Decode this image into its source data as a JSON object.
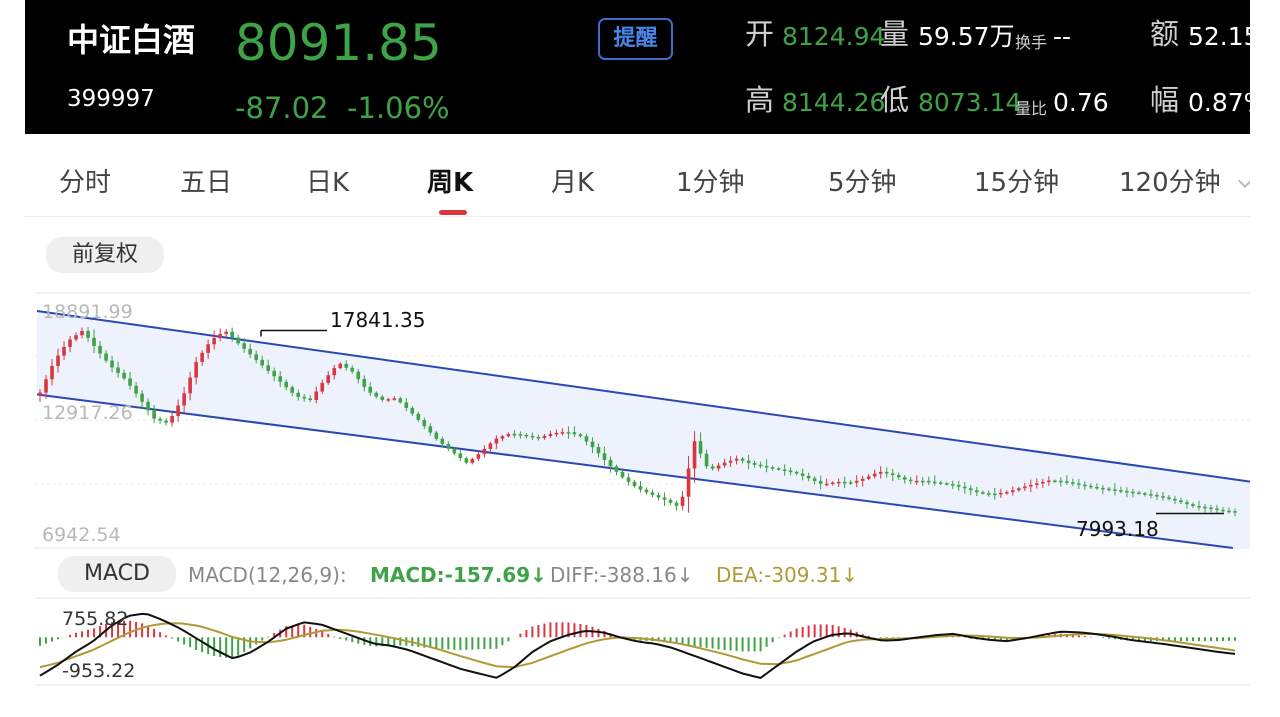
{
  "colors": {
    "up": "#d9363e",
    "down": "#3ea346",
    "dea": "#b09a35",
    "channel": "#2a48b5",
    "alert_border": "#3d6cc9"
  },
  "header": {
    "name": "中证白酒",
    "code": "399997",
    "price": "8091.85",
    "change": "-87.02",
    "change_pct": "-1.06%",
    "alert_button": "提醒",
    "open_label": "开",
    "open_value": "8124.94",
    "volume_label": "量",
    "volume_value": "59.57万",
    "turnover_label": "换手",
    "turnover_value": "--",
    "amount_label": "额",
    "amount_value": "52.15",
    "high_label": "高",
    "high_value": "8144.26",
    "low_label": "低",
    "low_value": "8073.14",
    "volume_ratio_label": "量比",
    "volume_ratio_value": "0.76",
    "amplitude_label": "幅",
    "amplitude_value": "0.87%"
  },
  "tabs": [
    {
      "label": "分时"
    },
    {
      "label": "五日"
    },
    {
      "label": "日K"
    },
    {
      "label": "周K"
    },
    {
      "label": "月K"
    },
    {
      "label": "1分钟"
    },
    {
      "label": "5分钟"
    },
    {
      "label": "15分钟"
    },
    {
      "label": "120分钟"
    }
  ],
  "active_tab": "周K",
  "adjust_button": "前复权",
  "kline": {
    "axis_labels": [
      "18891.99",
      "12917.26",
      "6942.54"
    ],
    "high_marker": "17841.35",
    "low_marker": "7993.18"
  },
  "macd": {
    "button": "MACD",
    "params": "MACD(12,26,9):",
    "macd_text": "MACD:-157.69↓",
    "diff_text": "DIFF:-388.16↓",
    "dea_text": "DEA:-309.31↓",
    "axis_max": "755.82",
    "axis_min": "-953.22"
  },
  "chart_data": [
    {
      "type": "candlestick",
      "title": "周K",
      "ylim": [
        6942.54,
        18891.99
      ],
      "annotations": [
        {
          "label": "17841.35",
          "value": 17841.35
        },
        {
          "label": "7993.18",
          "value": 7993.18
        }
      ],
      "channel": {
        "upper": [
          18891.99,
          9800
        ],
        "lower": [
          14400,
          6100
        ]
      },
      "close_trend": [
        14500,
        16200,
        17300,
        17841.35,
        16800,
        15900,
        15200,
        14200,
        13100,
        12850,
        14200,
        16200,
        17300,
        17841.35,
        17100,
        16400,
        15700,
        15000,
        14300,
        14100,
        15200,
        16100,
        15600,
        14600,
        14100,
        14200,
        13500,
        12700,
        11900,
        11300,
        10700,
        11300,
        12000,
        12300,
        12200,
        12050,
        12300,
        12400,
        12150,
        11450,
        10600,
        9900,
        9350,
        9000,
        8700,
        8300,
        11900,
        10300,
        10700,
        10950,
        10650,
        10500,
        10350,
        10200,
        9900,
        9550,
        9700,
        9650,
        9900,
        10250,
        10050,
        9750,
        9750,
        9650,
        9550,
        9350,
        9100,
        9050,
        9150,
        9400,
        9600,
        9780,
        9700,
        9550,
        9400,
        9300,
        9200,
        9100,
        9000,
        8850,
        8650,
        8400,
        8300,
        8150,
        8091.85
      ]
    },
    {
      "type": "bar",
      "title": "MACD(12,26,9)",
      "ylim": [
        -953.22,
        755.82
      ],
      "series": [
        {
          "name": "MACD",
          "last": -157.69
        },
        {
          "name": "DIFF",
          "last": -388.16
        },
        {
          "name": "DEA",
          "last": -309.31
        }
      ],
      "diff_trend": [
        -900,
        -650,
        -350,
        -100,
        250,
        500,
        560,
        400,
        200,
        -50,
        -300,
        -500,
        -350,
        -100,
        200,
        350,
        300,
        150,
        0,
        -150,
        -200,
        -300,
        -450,
        -600,
        -750,
        -850,
        -950,
        -700,
        -350,
        -100,
        50,
        150,
        120,
        0,
        -100,
        -150,
        -250,
        -400,
        -550,
        -700,
        -850,
        -953.22,
        -650,
        -350,
        -100,
        50,
        100,
        0,
        -80,
        -60,
        0,
        50,
        80,
        0,
        -60,
        -90,
        -30,
        50,
        130,
        120,
        80,
        20,
        -60,
        -110,
        -160,
        -220,
        -280,
        -340,
        -388.16
      ],
      "dea_trend": [
        -700,
        -600,
        -450,
        -300,
        -100,
        100,
        250,
        320,
        330,
        270,
        150,
        0,
        -100,
        -120,
        -60,
        50,
        150,
        180,
        140,
        70,
        -10,
        -100,
        -200,
        -320,
        -450,
        -570,
        -680,
        -700,
        -600,
        -450,
        -300,
        -150,
        -50,
        0,
        -20,
        -60,
        -120,
        -200,
        -300,
        -400,
        -520,
        -620,
        -630,
        -550,
        -400,
        -250,
        -100,
        -50,
        -40,
        -30,
        -20,
        10,
        40,
        40,
        20,
        -10,
        -20,
        0,
        40,
        70,
        80,
        60,
        20,
        -20,
        -70,
        -130,
        -190,
        -250,
        -309.31
      ]
    }
  ]
}
